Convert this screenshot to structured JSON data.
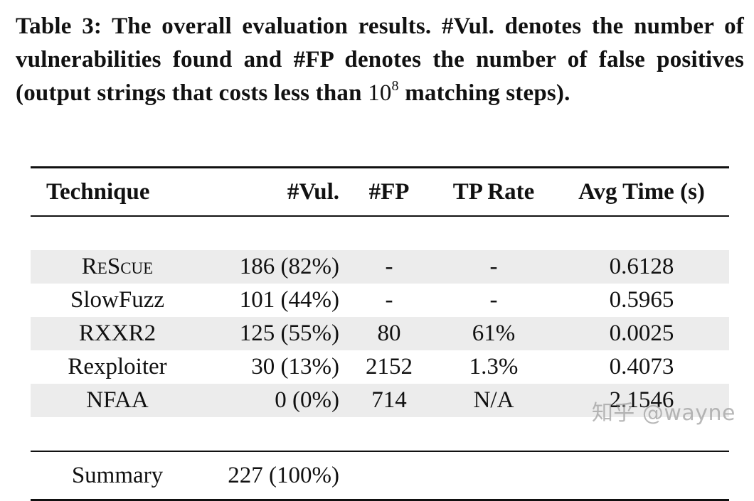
{
  "caption": {
    "text": "Table 3: The overall evaluation results. #Vul. denotes the number of vulnerabilities found and #FP denotes the number of false positives (output strings that costs less than",
    "power_base": "10",
    "power_exp": "8",
    "tail": "matching steps)."
  },
  "table": {
    "headers": [
      "Technique",
      "#Vul.",
      "#FP",
      "TP Rate",
      "Avg Time (s)"
    ],
    "rows": [
      {
        "technique": "ReScue",
        "vul": "186 (82%)",
        "fp": "-",
        "tp_rate": "-",
        "avg_time": "0.6128"
      },
      {
        "technique": "SlowFuzz",
        "vul": "101 (44%)",
        "fp": "-",
        "tp_rate": "-",
        "avg_time": "0.5965"
      },
      {
        "technique": "RXXR2",
        "vul": "125 (55%)",
        "fp": "80",
        "tp_rate": "61%",
        "avg_time": "0.0025"
      },
      {
        "technique": "Rexploiter",
        "vul": "30 (13%)",
        "fp": "2152",
        "tp_rate": "1.3%",
        "avg_time": "0.4073"
      },
      {
        "technique": "NFAA",
        "vul": "0 (0%)",
        "fp": "714",
        "tp_rate": "N/A",
        "avg_time": "2.1546"
      }
    ],
    "summary": {
      "label": "Summary",
      "vul": "227 (100%)"
    }
  },
  "watermark": "知乎 @wayne"
}
